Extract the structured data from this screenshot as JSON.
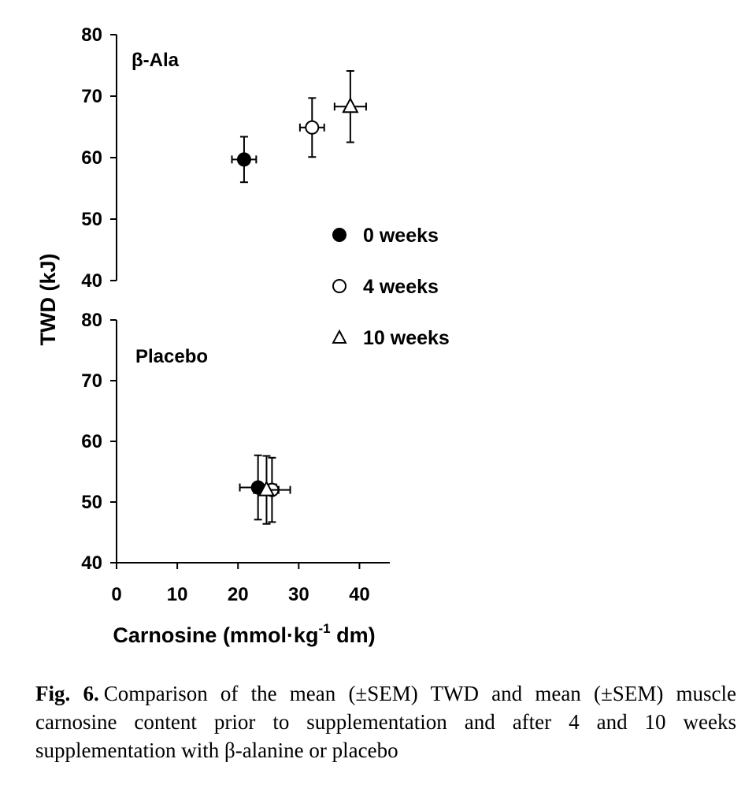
{
  "chart_data": {
    "type": "scatter",
    "ylabel": "TWD (kJ)",
    "xlabel": {
      "main": "Carnosine (mmol·kg",
      "sup": "-1",
      "tail": " dm)"
    },
    "xlim": [
      0,
      45
    ],
    "xticks": [
      "0",
      "10",
      "20",
      "30",
      "40"
    ],
    "legend": {
      "placement": "right",
      "entries": [
        {
          "label": "0 weeks",
          "marker": "filled-circle"
        },
        {
          "label": "4 weeks",
          "marker": "open-circle"
        },
        {
          "label": "10 weeks",
          "marker": "open-triangle"
        }
      ]
    },
    "panels": [
      {
        "label": "β-Ala",
        "ylim": [
          40,
          80
        ],
        "yticks": [
          "40",
          "50",
          "60",
          "70",
          "80"
        ],
        "points": [
          {
            "series": "0 weeks",
            "x": 21.0,
            "y": 59.7,
            "xerr": 2.0,
            "yerr": 3.7
          },
          {
            "series": "4 weeks",
            "x": 32.2,
            "y": 64.9,
            "xerr": 2.0,
            "yerr": 4.8
          },
          {
            "series": "10 weeks",
            "x": 38.5,
            "y": 68.3,
            "xerr": 2.6,
            "yerr": 5.8
          }
        ]
      },
      {
        "label": "Placebo",
        "ylim": [
          40,
          80
        ],
        "yticks": [
          "40",
          "50",
          "60",
          "70",
          "80"
        ],
        "points": [
          {
            "series": "0 weeks",
            "x": 23.3,
            "y": 52.4,
            "xerr": 3.0,
            "yerr": 5.3
          },
          {
            "series": "4 weeks",
            "x": 25.6,
            "y": 52.0,
            "xerr": 3.0,
            "yerr": 5.3
          },
          {
            "series": "10 weeks",
            "x": 24.7,
            "y": 52.0,
            "xerr": 2.0,
            "yerr": 5.6
          }
        ]
      }
    ]
  },
  "caption": {
    "figure_number": "Fig. 6.",
    "text": "Comparison of the mean (±SEM) TWD and mean (±SEM) muscle carnosine content prior to supplementation and after 4 and 10 weeks supplementation with β-alanine or placebo"
  }
}
